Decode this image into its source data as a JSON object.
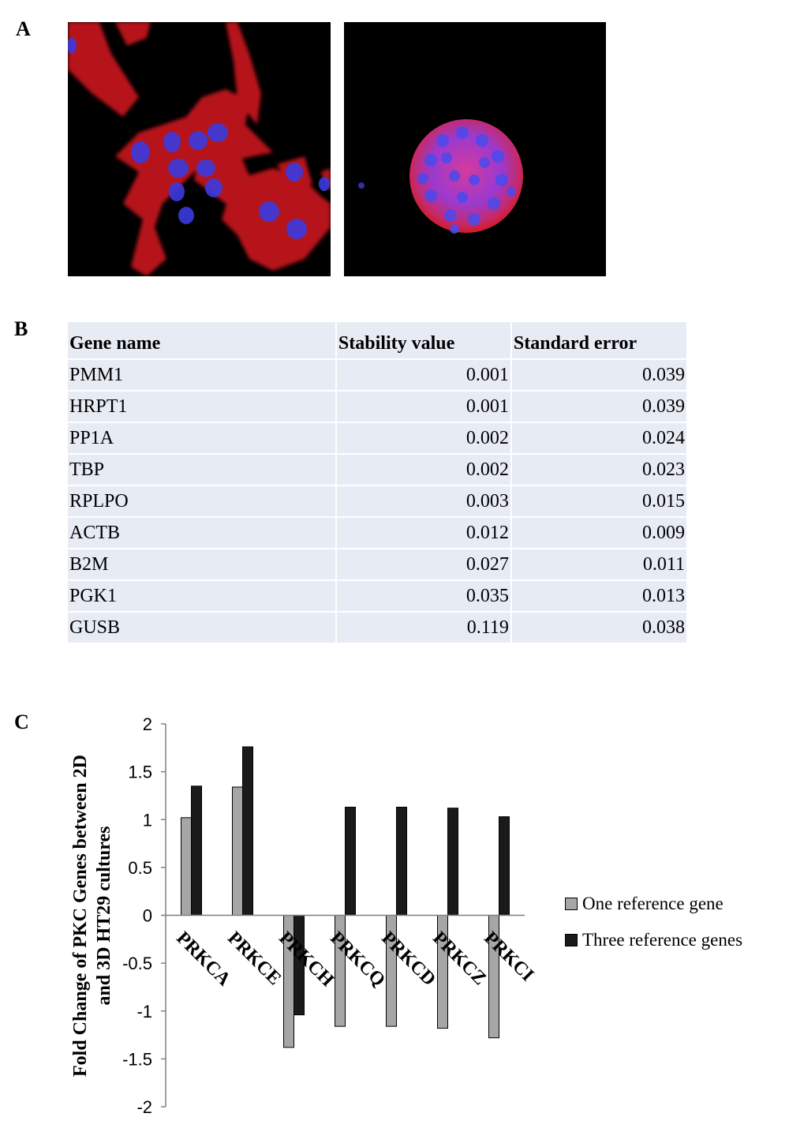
{
  "panels": {
    "a": "A",
    "b": "B",
    "c": "C"
  },
  "table": {
    "headers": [
      "Gene name",
      "Stability value",
      "Standard error"
    ],
    "rows": [
      [
        "PMM1",
        "0.001",
        "0.039"
      ],
      [
        "HRPT1",
        "0.001",
        "0.039"
      ],
      [
        "PP1A",
        "0.002",
        "0.024"
      ],
      [
        "TBP",
        "0.002",
        "0.023"
      ],
      [
        "RPLPO",
        "0.003",
        "0.015"
      ],
      [
        "ACTB",
        "0.012",
        "0.009"
      ],
      [
        "B2M",
        "0.027",
        "0.011"
      ],
      [
        "PGK1",
        "0.035",
        "0.013"
      ],
      [
        "GUSB",
        "0.119",
        "0.038"
      ]
    ]
  },
  "chart_data": {
    "type": "bar",
    "categories": [
      "PRKCA",
      "PRKCE",
      "PRKCH",
      "PRKCQ",
      "PRKCD",
      "PRKCZ",
      "PRKCI"
    ],
    "series": [
      {
        "name": "One reference gene",
        "values": [
          1.02,
          1.34,
          -1.38,
          -1.16,
          -1.16,
          -1.18,
          -1.28
        ],
        "color": "#a6a6a6"
      },
      {
        "name": "Three reference genes",
        "values": [
          1.35,
          1.76,
          -1.04,
          1.13,
          1.13,
          1.12,
          1.03
        ],
        "color": "#1a1a1a"
      }
    ],
    "ylabel": "Fold Change of PKC Genes between 2D and 3D HT29 cultures",
    "ylim": [
      -2,
      2
    ],
    "yticks": [
      "2",
      "1.5",
      "1",
      "0.5",
      "0",
      "-0.5",
      "-1",
      "-1.5",
      "-2"
    ],
    "legend_position": "right"
  }
}
